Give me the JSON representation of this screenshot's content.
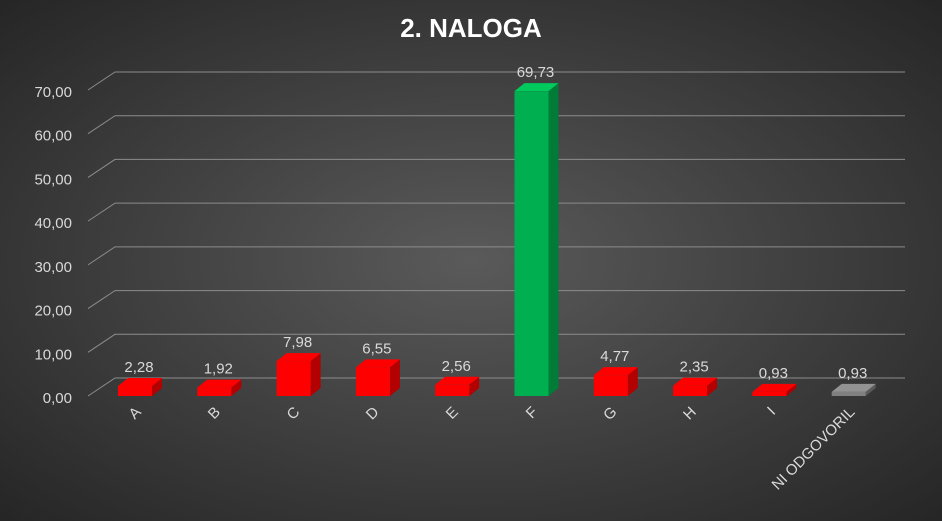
{
  "chart_data": {
    "type": "bar3d",
    "title": "2. NALOGA",
    "categories": [
      "A",
      "B",
      "C",
      "D",
      "E",
      "F",
      "G",
      "H",
      "I",
      "NI ODGOVORIL"
    ],
    "values": [
      2.28,
      1.92,
      7.98,
      6.55,
      2.56,
      69.73,
      4.77,
      2.35,
      0.93,
      0.93
    ],
    "value_labels": [
      "2,28",
      "1,92",
      "7,98",
      "6,55",
      "2,56",
      "69,73",
      "4,77",
      "2,35",
      "0,93",
      "0,93"
    ],
    "colors": [
      "#ff0000",
      "#ff0000",
      "#ff0000",
      "#ff0000",
      "#ff0000",
      "#00b050",
      "#ff0000",
      "#ff0000",
      "#ff0000",
      "#808080"
    ],
    "ylim": [
      0,
      70
    ],
    "yticks": [
      {
        "value": 0,
        "label": "0,00"
      },
      {
        "value": 10,
        "label": "10,00"
      },
      {
        "value": 20,
        "label": "20,00"
      },
      {
        "value": 30,
        "label": "30,00"
      },
      {
        "value": 40,
        "label": "40,00"
      },
      {
        "value": 50,
        "label": "50,00"
      },
      {
        "value": 60,
        "label": "60,00"
      },
      {
        "value": 70,
        "label": "70,00"
      }
    ],
    "grid": true
  }
}
